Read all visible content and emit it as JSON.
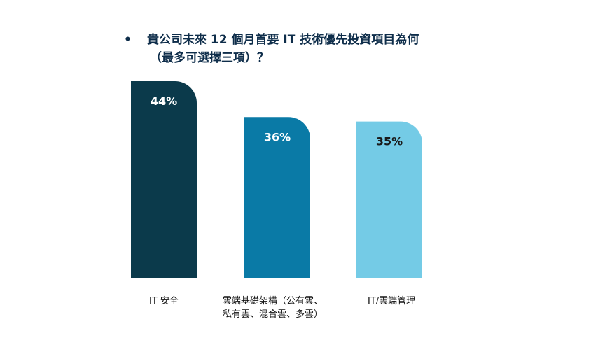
{
  "title": {
    "bullet": "•",
    "line1": "貴公司未來 12 個月首要 IT 技術優先投資項目為何",
    "line2": "（最多可選擇三項）？"
  },
  "chart_data": {
    "type": "bar",
    "categories": [
      "IT 安全",
      "雲端基礎架構（公有雲、私有雲、混合雲、多雲）",
      "IT/雲端管理"
    ],
    "category_lines": [
      [
        "IT 安全"
      ],
      [
        "雲端基礎架構（公有雲、",
        "私有雲、混合雲、多雲）"
      ],
      [
        "IT/雲端管理"
      ]
    ],
    "values": [
      44,
      36,
      35
    ],
    "value_labels": [
      "44%",
      "36%",
      "35%"
    ],
    "bar_colors": [
      "#0b3a4b",
      "#0a7aa6",
      "#74cbe6"
    ],
    "value_label_colors": [
      "#ffffff",
      "#ffffff",
      "#1a1a1a"
    ],
    "title": "貴公司未來 12 個月首要 IT 技術優先投資項目為何（最多可選擇三項）？",
    "xlabel": "",
    "ylabel": "",
    "ylim": [
      0,
      44
    ],
    "grid": false,
    "legend": "none"
  }
}
